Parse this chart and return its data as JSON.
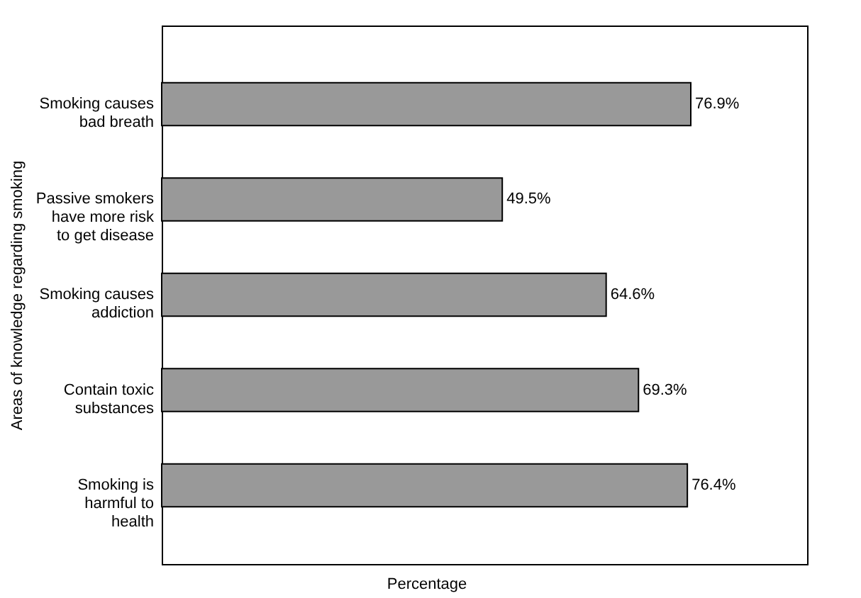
{
  "chart_data": {
    "type": "bar",
    "orientation": "horizontal",
    "xlabel": "Percentage",
    "ylabel": "Areas of knowledge regarding smoking",
    "categories": [
      "Smoking causes bad breath",
      "Passive smokers have more risk to get disease",
      "Smoking causes addiction",
      "Contain toxic substances",
      "Smoking is harmful to health"
    ],
    "values": [
      76.9,
      49.5,
      64.6,
      69.3,
      76.4
    ],
    "value_labels": [
      "76.9%",
      "49.5%",
      "64.6%",
      "69.3%",
      "76.4%"
    ],
    "color": "#999999",
    "grid": false
  }
}
